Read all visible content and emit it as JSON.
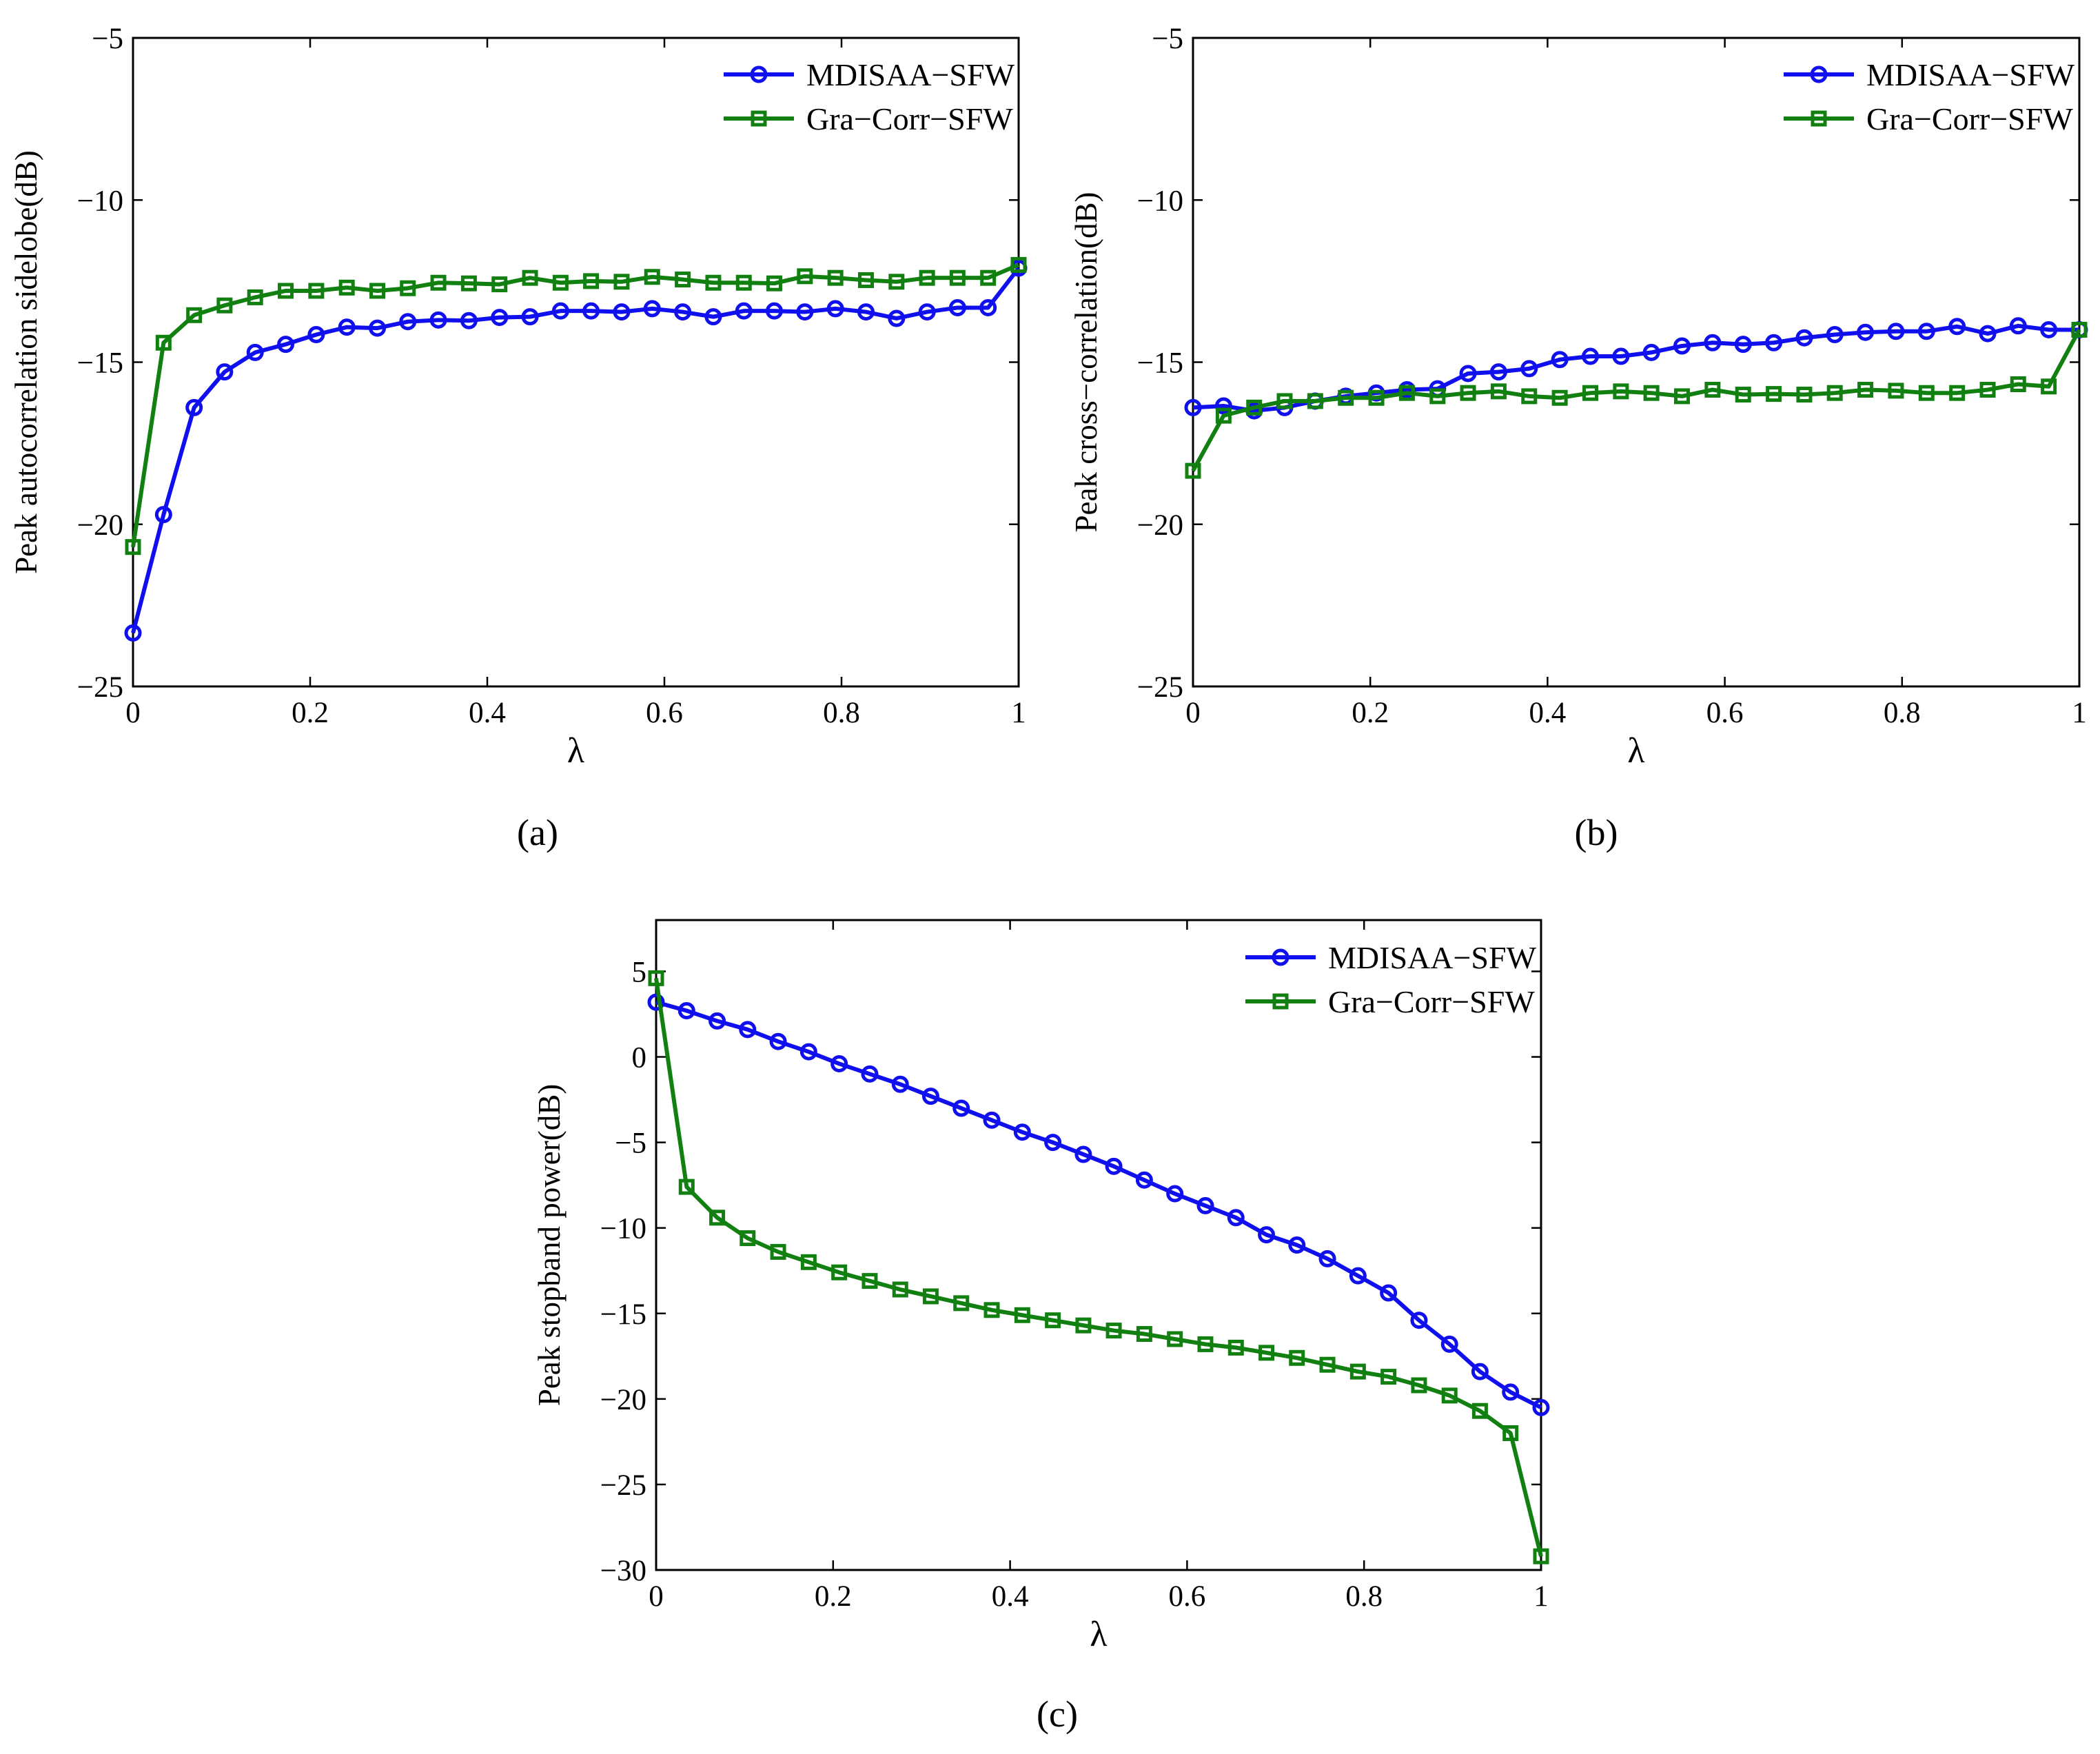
{
  "colors": {
    "series1": "#1010ee",
    "series2": "#118011",
    "axis": "#000000",
    "background": "#ffffff"
  },
  "chart_data": [
    {
      "type": "line",
      "caption": "(a)",
      "title": "",
      "xlabel": "λ",
      "ylabel": "Peak autocorrelation sidelobe(dB)",
      "xlim": [
        0,
        1
      ],
      "ylim": [
        -25,
        -5
      ],
      "xticks": [
        0,
        0.2,
        0.4,
        0.6,
        0.8,
        1
      ],
      "xtick_labels": [
        "0",
        "0.2",
        "0.4",
        "0.6",
        "0.8",
        "1"
      ],
      "yticks": [
        -25,
        -20,
        -15,
        -10,
        -5
      ],
      "ytick_labels": [
        "−25",
        "−20",
        "−15",
        "−10",
        "−5"
      ],
      "legend_position": "top-right",
      "grid": false,
      "x": [
        0,
        0.0345,
        0.069,
        0.1034,
        0.1379,
        0.1724,
        0.2069,
        0.2414,
        0.2759,
        0.3103,
        0.3448,
        0.3793,
        0.4138,
        0.4483,
        0.4828,
        0.5172,
        0.5517,
        0.5862,
        0.6207,
        0.6552,
        0.6897,
        0.7241,
        0.7586,
        0.7931,
        0.8276,
        0.8621,
        0.8966,
        0.931,
        0.9655,
        1
      ],
      "series": [
        {
          "name": "MDISAA−SFW",
          "marker": "circle",
          "color": "#1010ee",
          "values": [
            -23.35,
            -19.7,
            -16.4,
            -15.3,
            -14.7,
            -14.45,
            -14.15,
            -13.92,
            -13.95,
            -13.75,
            -13.7,
            -13.72,
            -13.62,
            -13.6,
            -13.42,
            -13.42,
            -13.45,
            -13.35,
            -13.45,
            -13.6,
            -13.42,
            -13.42,
            -13.45,
            -13.35,
            -13.45,
            -13.65,
            -13.45,
            -13.32,
            -13.32,
            -12.1
          ]
        },
        {
          "name": "Gra−Corr−SFW",
          "marker": "square",
          "color": "#118011",
          "values": [
            -20.7,
            -14.4,
            -13.55,
            -13.25,
            -13.0,
            -12.8,
            -12.8,
            -12.7,
            -12.8,
            -12.72,
            -12.55,
            -12.57,
            -12.6,
            -12.4,
            -12.55,
            -12.5,
            -12.52,
            -12.37,
            -12.45,
            -12.55,
            -12.55,
            -12.57,
            -12.35,
            -12.4,
            -12.47,
            -12.52,
            -12.4,
            -12.4,
            -12.4,
            -12.0
          ]
        }
      ]
    },
    {
      "type": "line",
      "caption": "(b)",
      "title": "",
      "xlabel": "λ",
      "ylabel": "Peak cross−correlation(dB)",
      "xlim": [
        0,
        1
      ],
      "ylim": [
        -25,
        -5
      ],
      "xticks": [
        0,
        0.2,
        0.4,
        0.6,
        0.8,
        1
      ],
      "xtick_labels": [
        "0",
        "0.2",
        "0.4",
        "0.6",
        "0.8",
        "1"
      ],
      "yticks": [
        -25,
        -20,
        -15,
        -10,
        -5
      ],
      "ytick_labels": [
        "−25",
        "−20",
        "−15",
        "−10",
        "−5"
      ],
      "legend_position": "top-right",
      "grid": false,
      "x": [
        0,
        0.0345,
        0.069,
        0.1034,
        0.1379,
        0.1724,
        0.2069,
        0.2414,
        0.2759,
        0.3103,
        0.3448,
        0.3793,
        0.4138,
        0.4483,
        0.4828,
        0.5172,
        0.5517,
        0.5862,
        0.6207,
        0.6552,
        0.6897,
        0.7241,
        0.7586,
        0.7931,
        0.8276,
        0.8621,
        0.8966,
        0.931,
        0.9655,
        1
      ],
      "series": [
        {
          "name": "MDISAA−SFW",
          "marker": "circle",
          "color": "#1010ee",
          "values": [
            -16.4,
            -16.35,
            -16.5,
            -16.4,
            -16.2,
            -16.05,
            -15.95,
            -15.85,
            -15.82,
            -15.35,
            -15.3,
            -15.2,
            -14.92,
            -14.82,
            -14.82,
            -14.7,
            -14.5,
            -14.4,
            -14.45,
            -14.4,
            -14.25,
            -14.15,
            -14.08,
            -14.05,
            -14.05,
            -13.9,
            -14.12,
            -13.88,
            -14.0,
            -14.0
          ]
        },
        {
          "name": "Gra−Corr−SFW",
          "marker": "square",
          "color": "#118011",
          "values": [
            -18.35,
            -16.65,
            -16.4,
            -16.2,
            -16.2,
            -16.1,
            -16.1,
            -15.95,
            -16.05,
            -15.95,
            -15.9,
            -16.05,
            -16.1,
            -15.95,
            -15.9,
            -15.95,
            -16.05,
            -15.85,
            -16.0,
            -15.98,
            -16.0,
            -15.95,
            -15.85,
            -15.88,
            -15.95,
            -15.95,
            -15.85,
            -15.68,
            -15.75,
            -14.0
          ]
        }
      ]
    },
    {
      "type": "line",
      "caption": "(c)",
      "title": "",
      "xlabel": "λ",
      "ylabel": "Peak stopband power(dB)",
      "xlim": [
        0,
        1
      ],
      "ylim": [
        -30,
        8
      ],
      "xticks": [
        0,
        0.2,
        0.4,
        0.6,
        0.8,
        1
      ],
      "xtick_labels": [
        "0",
        "0.2",
        "0.4",
        "0.6",
        "0.8",
        "1"
      ],
      "yticks": [
        -30,
        -25,
        -20,
        -15,
        -10,
        -5,
        0,
        5
      ],
      "ytick_labels": [
        "−30",
        "−25",
        "−20",
        "−15",
        "−10",
        "−5",
        "0",
        "5"
      ],
      "legend_position": "top-right",
      "grid": false,
      "x": [
        0,
        0.0345,
        0.069,
        0.1034,
        0.1379,
        0.1724,
        0.2069,
        0.2414,
        0.2759,
        0.3103,
        0.3448,
        0.3793,
        0.4138,
        0.4483,
        0.4828,
        0.5172,
        0.5517,
        0.5862,
        0.6207,
        0.6552,
        0.6897,
        0.7241,
        0.7586,
        0.7931,
        0.8276,
        0.8621,
        0.8966,
        0.931,
        0.9655,
        1
      ],
      "series": [
        {
          "name": "MDISAA−SFW",
          "marker": "circle",
          "color": "#1010ee",
          "values": [
            3.2,
            2.7,
            2.1,
            1.6,
            0.9,
            0.3,
            -0.4,
            -1.0,
            -1.6,
            -2.3,
            -3.0,
            -3.7,
            -4.4,
            -5.0,
            -5.7,
            -6.4,
            -7.2,
            -8.0,
            -8.7,
            -9.4,
            -10.4,
            -11.0,
            -11.8,
            -12.8,
            -13.8,
            -15.4,
            -16.8,
            -18.4,
            -19.6,
            -20.5
          ]
        },
        {
          "name": "Gra−Corr−SFW",
          "marker": "square",
          "color": "#118011",
          "values": [
            4.6,
            -7.6,
            -9.4,
            -10.6,
            -11.4,
            -12.0,
            -12.6,
            -13.1,
            -13.6,
            -14.0,
            -14.4,
            -14.8,
            -15.1,
            -15.4,
            -15.7,
            -16.0,
            -16.2,
            -16.5,
            -16.8,
            -17.0,
            -17.3,
            -17.6,
            -18.0,
            -18.4,
            -18.7,
            -19.2,
            -19.8,
            -20.7,
            -22.0,
            -29.2
          ]
        }
      ]
    }
  ]
}
